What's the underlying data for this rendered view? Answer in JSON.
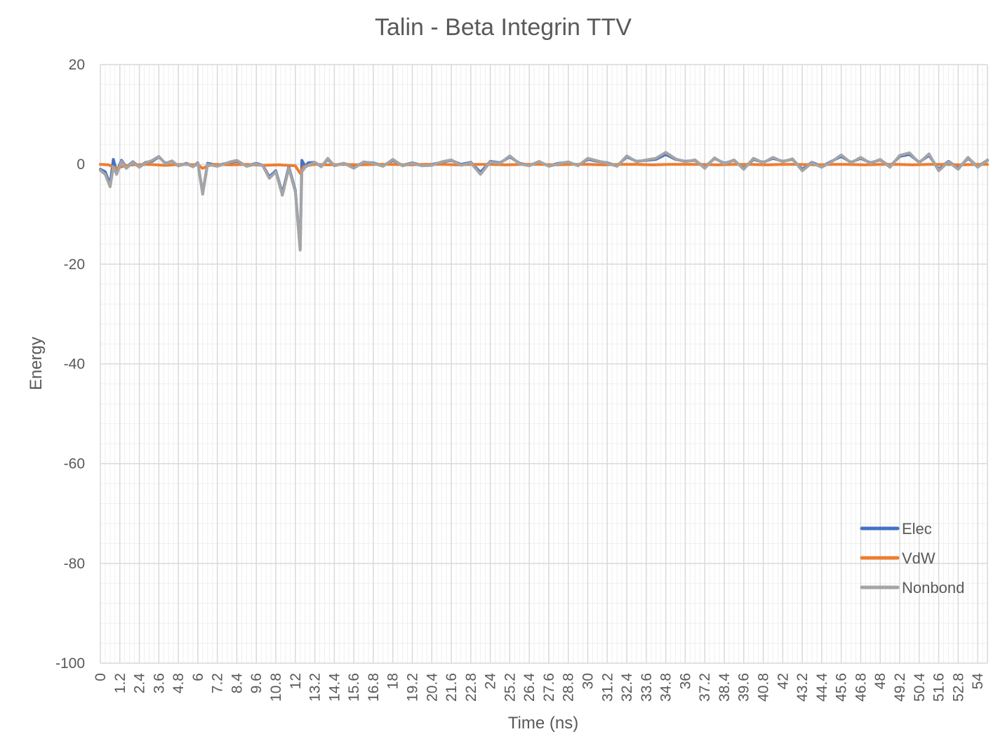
{
  "chart_data": {
    "type": "line",
    "title": "Talin - Beta Integrin TTV",
    "xlabel": "Time (ns)",
    "ylabel": "Energy",
    "ylim": [
      -100,
      20
    ],
    "yticks": [
      20,
      0,
      -20,
      -40,
      -60,
      -80,
      -100
    ],
    "xlim": [
      0,
      54.6
    ],
    "xticks": [
      "0",
      "1.2",
      "2.4",
      "3.6",
      "4.8",
      "6",
      "7.2",
      "8.4",
      "9.6",
      "10.8",
      "12",
      "13.2",
      "14.4",
      "15.6",
      "16.8",
      "18",
      "19.2",
      "20.4",
      "21.6",
      "22.8",
      "24",
      "25.2",
      "26.4",
      "27.6",
      "28.8",
      "30",
      "31.2",
      "32.4",
      "33.6",
      "34.8",
      "36",
      "37.2",
      "38.4",
      "39.6",
      "40.8",
      "42",
      "43.2",
      "44.4",
      "45.6",
      "46.8",
      "48",
      "49.2",
      "50.4",
      "51.6",
      "52.8",
      "54"
    ],
    "grid": true,
    "legend_position": "bottom-right",
    "series": [
      {
        "name": "Elec",
        "color": "#4472C4",
        "x": [
          0,
          0.3,
          0.6,
          0.8,
          1.0,
          1.3,
          1.6,
          2.0,
          2.4,
          2.8,
          3.2,
          3.6,
          4.0,
          4.4,
          4.8,
          5.3,
          5.7,
          6.0,
          6.3,
          6.6,
          7.2,
          8.0,
          8.4,
          9.0,
          9.6,
          10.0,
          10.4,
          10.8,
          11.2,
          11.6,
          12.0,
          12.3,
          12.4,
          12.6,
          12.8,
          13.2,
          13.6,
          14.0,
          14.4,
          15.0,
          15.6,
          16.2,
          16.8,
          17.4,
          18.0,
          18.6,
          19.2,
          19.8,
          20.4,
          21.0,
          21.6,
          22.2,
          22.8,
          23.4,
          24.0,
          24.6,
          25.2,
          25.8,
          26.4,
          27.0,
          27.6,
          28.2,
          28.8,
          29.4,
          30.0,
          30.6,
          31.2,
          31.8,
          32.4,
          33.0,
          33.6,
          34.2,
          34.8,
          35.4,
          36.0,
          36.6,
          37.2,
          37.8,
          38.4,
          39.0,
          39.6,
          40.2,
          40.8,
          41.4,
          42.0,
          42.6,
          43.2,
          43.8,
          44.4,
          45.0,
          45.6,
          46.2,
          46.8,
          47.4,
          48.0,
          48.6,
          49.2,
          49.8,
          50.4,
          51.0,
          51.6,
          52.2,
          52.8,
          53.4,
          54.0,
          54.6
        ],
        "y": [
          -1.0,
          -1.5,
          -4.0,
          1.0,
          -1.5,
          0.8,
          -0.6,
          0.5,
          -0.5,
          0.4,
          0.6,
          1.5,
          0.2,
          0.6,
          -0.3,
          0.2,
          -0.4,
          0.3,
          -5.8,
          0.2,
          -0.2,
          0.4,
          0.6,
          -0.3,
          0.2,
          -0.2,
          -2.5,
          -1.3,
          -5.8,
          -0.5,
          -5.2,
          -17.0,
          0.8,
          -0.4,
          0.3,
          0.4,
          -0.4,
          1.0,
          -0.2,
          0.2,
          -0.6,
          0.4,
          0.3,
          -0.3,
          0.8,
          -0.2,
          0.3,
          -0.2,
          0.0,
          0.4,
          0.8,
          0.0,
          0.4,
          -1.6,
          0.6,
          0.3,
          1.5,
          0.2,
          -0.2,
          0.5,
          -0.3,
          0.2,
          0.4,
          -0.2,
          1.0,
          0.6,
          0.3,
          -0.3,
          1.5,
          0.6,
          0.8,
          1.0,
          2.0,
          1.0,
          0.6,
          0.8,
          -0.6,
          1.2,
          0.2,
          0.8,
          -0.8,
          1.0,
          0.4,
          1.2,
          0.6,
          1.0,
          -1.0,
          0.4,
          -0.4,
          0.6,
          1.6,
          0.4,
          1.2,
          0.3,
          0.9,
          -0.4,
          1.6,
          2.0,
          0.4,
          1.8,
          -1.0,
          0.6,
          -0.8,
          1.2,
          -0.4,
          0.8
        ]
      },
      {
        "name": "VdW",
        "color": "#ED7D31",
        "x": [
          0,
          0.5,
          1.0,
          1.5,
          2.0,
          3.0,
          4.0,
          5.0,
          6.0,
          6.3,
          6.6,
          7.0,
          8.0,
          9.0,
          10.0,
          11.0,
          12.0,
          12.3,
          12.5,
          12.8,
          13.2,
          14.0,
          15.0,
          16.0,
          17.0,
          18.0,
          19.0,
          20.0,
          21.0,
          22.0,
          23.0,
          24.0,
          25.0,
          26.0,
          27.0,
          28.0,
          29.0,
          30.0,
          31.0,
          32.0,
          33.0,
          34.0,
          35.0,
          36.0,
          37.0,
          38.0,
          39.0,
          40.0,
          41.0,
          42.0,
          43.0,
          44.0,
          45.0,
          46.0,
          47.0,
          48.0,
          49.0,
          50.0,
          51.0,
          52.0,
          53.0,
          54.0,
          54.6
        ],
        "y": [
          0.0,
          -0.1,
          -0.8,
          -0.3,
          -0.1,
          0.0,
          -0.2,
          0.0,
          -0.1,
          -0.8,
          -0.3,
          0.0,
          -0.1,
          0.0,
          -0.2,
          -0.1,
          -0.3,
          -1.8,
          -0.5,
          -0.2,
          0.0,
          -0.1,
          0.0,
          -0.1,
          0.0,
          0.0,
          -0.1,
          0.0,
          0.0,
          -0.1,
          0.0,
          0.0,
          -0.1,
          0.0,
          0.0,
          -0.1,
          0.0,
          0.0,
          -0.1,
          0.0,
          0.0,
          -0.1,
          0.0,
          0.0,
          0.0,
          -0.1,
          0.0,
          0.0,
          -0.1,
          0.0,
          0.0,
          -0.1,
          0.0,
          0.0,
          -0.1,
          0.0,
          0.0,
          -0.1,
          0.0,
          0.0,
          -0.1,
          0.0,
          0.0
        ]
      },
      {
        "name": "Nonbond",
        "color": "#A5A5A5",
        "x": [
          0,
          0.3,
          0.6,
          0.8,
          1.0,
          1.3,
          1.6,
          2.0,
          2.4,
          2.8,
          3.2,
          3.6,
          4.0,
          4.4,
          4.8,
          5.3,
          5.7,
          6.0,
          6.3,
          6.6,
          7.2,
          8.0,
          8.4,
          9.0,
          9.6,
          10.0,
          10.4,
          10.8,
          11.2,
          11.6,
          12.0,
          12.3,
          12.4,
          12.6,
          12.8,
          13.2,
          13.6,
          14.0,
          14.4,
          15.0,
          15.6,
          16.2,
          16.8,
          17.4,
          18.0,
          18.6,
          19.2,
          19.8,
          20.4,
          21.0,
          21.6,
          22.2,
          22.8,
          23.4,
          24.0,
          24.6,
          25.2,
          25.8,
          26.4,
          27.0,
          27.6,
          28.2,
          28.8,
          29.4,
          30.0,
          30.6,
          31.2,
          31.8,
          32.4,
          33.0,
          33.6,
          34.2,
          34.8,
          35.4,
          36.0,
          36.6,
          37.2,
          37.8,
          38.4,
          39.0,
          39.6,
          40.2,
          40.8,
          41.4,
          42.0,
          42.6,
          43.2,
          43.8,
          44.4,
          45.0,
          45.6,
          46.2,
          46.8,
          47.4,
          48.0,
          48.6,
          49.2,
          49.8,
          50.4,
          51.0,
          51.6,
          52.2,
          52.8,
          53.4,
          54.0,
          54.6
        ],
        "y": [
          -1.2,
          -2.0,
          -4.5,
          -0.5,
          -2.0,
          0.6,
          -0.8,
          0.4,
          -0.6,
          0.3,
          0.8,
          1.6,
          0.1,
          0.7,
          -0.3,
          0.1,
          -0.5,
          0.2,
          -6.0,
          0.0,
          -0.4,
          0.5,
          0.8,
          -0.4,
          0.1,
          -0.3,
          -2.8,
          -1.5,
          -6.2,
          -0.8,
          -5.5,
          -17.2,
          -1.5,
          -0.6,
          -0.2,
          0.4,
          -0.5,
          1.2,
          -0.3,
          0.2,
          -0.8,
          0.5,
          0.2,
          -0.4,
          1.0,
          -0.3,
          0.2,
          -0.3,
          -0.2,
          0.5,
          0.9,
          -0.2,
          0.3,
          -2.0,
          0.5,
          0.2,
          1.7,
          0.1,
          -0.3,
          0.6,
          -0.4,
          0.1,
          0.5,
          -0.3,
          1.2,
          0.7,
          0.2,
          -0.4,
          1.7,
          0.5,
          0.9,
          1.2,
          2.4,
          1.1,
          0.5,
          0.9,
          -0.8,
          1.3,
          0.1,
          0.9,
          -1.0,
          1.2,
          0.3,
          1.4,
          0.5,
          1.1,
          -1.3,
          0.3,
          -0.6,
          0.5,
          1.9,
          0.3,
          1.4,
          0.2,
          1.0,
          -0.6,
          1.8,
          2.3,
          0.3,
          2.1,
          -1.3,
          0.5,
          -1.0,
          1.4,
          -0.6,
          0.9
        ]
      }
    ]
  }
}
